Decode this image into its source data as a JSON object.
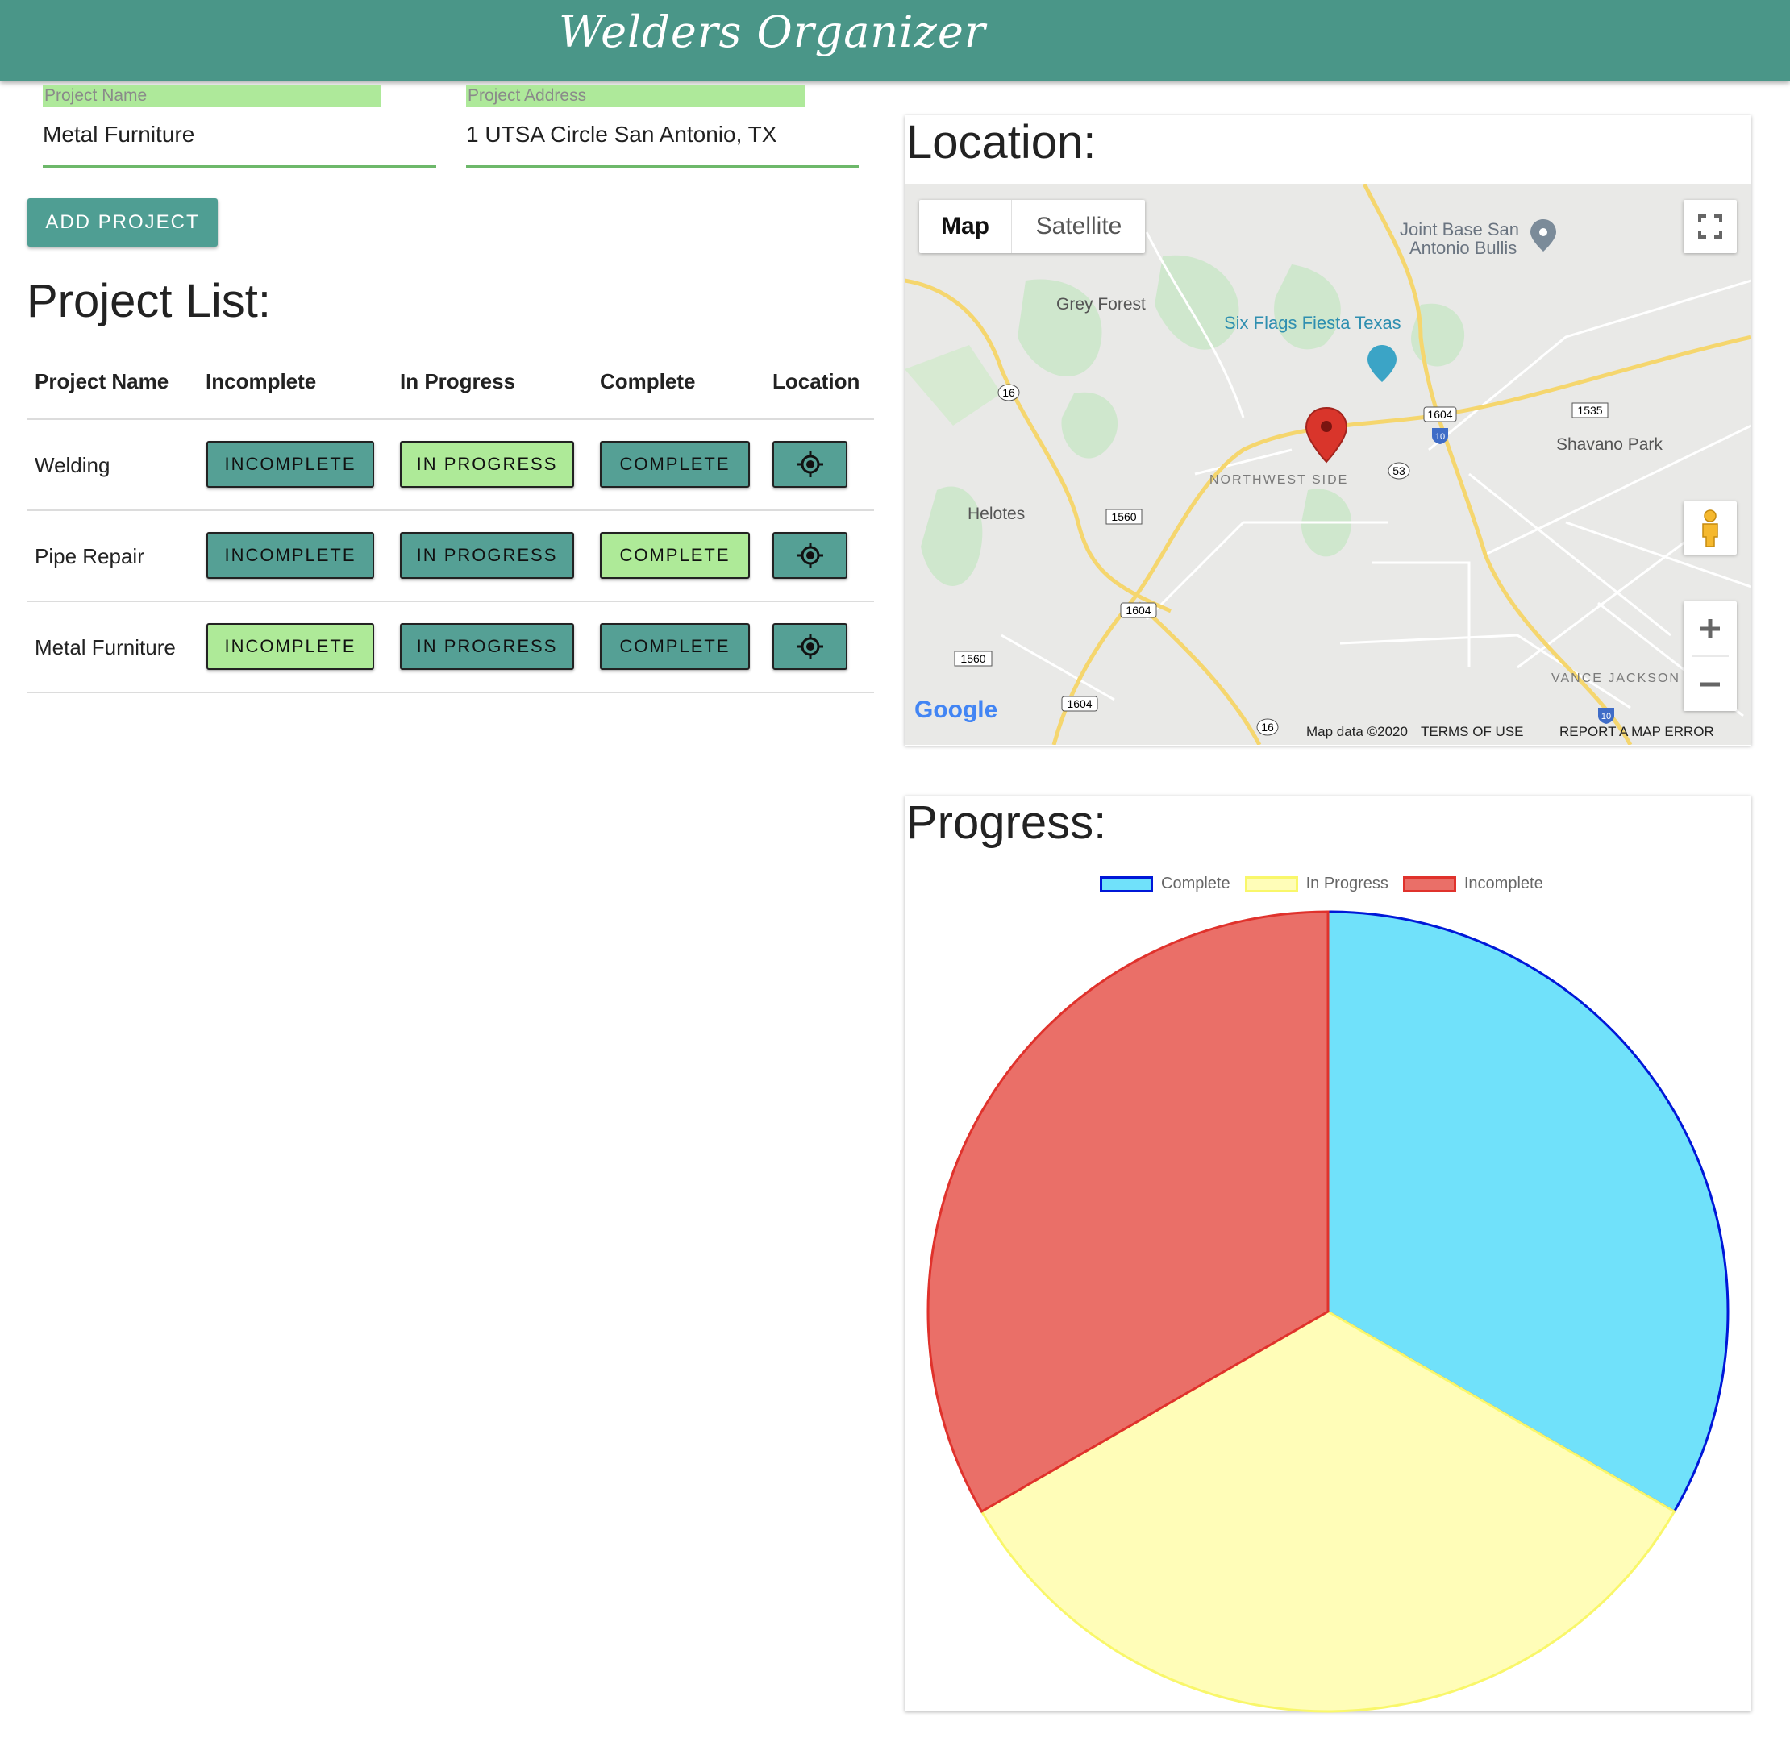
{
  "app": {
    "title": "Welders Organizer"
  },
  "form": {
    "project_name_label": "Project Name",
    "project_name_value": "Metal Furniture",
    "project_address_label": "Project Address",
    "project_address_value": "1 UTSA Circle San Antonio, TX",
    "add_button": "ADD PROJECT"
  },
  "project_list": {
    "title": "Project List:",
    "headers": [
      "Project Name",
      "Incomplete",
      "In Progress",
      "Complete",
      "Location"
    ],
    "button_labels": {
      "incomplete": "INCOMPLETE",
      "in_progress": "IN PROGRESS",
      "complete": "COMPLETE"
    },
    "rows": [
      {
        "name": "Welding",
        "status": "in_progress"
      },
      {
        "name": "Pipe Repair",
        "status": "complete"
      },
      {
        "name": "Metal Furniture",
        "status": "incomplete"
      }
    ]
  },
  "location": {
    "title": "Location:",
    "map_tabs": [
      "Map",
      "Satellite"
    ],
    "active_tab": "Map",
    "places": [
      "Grey Forest",
      "Six Flags Fiesta Texas",
      "Joint Base San",
      "Antonio Bullis",
      "Shavano Park",
      "NORTHWEST SIDE",
      "Helotes",
      "VANCE JACKSON"
    ],
    "road_shields": [
      "16",
      "1604",
      "10",
      "1535",
      "53",
      "1560",
      "1604",
      "1560",
      "1604",
      "16",
      "10"
    ],
    "attribution": "Map data ©2020",
    "terms": "TERMS OF USE",
    "report": "REPORT A MAP ERROR",
    "google": "Google",
    "icons": [
      "fullscreen-icon",
      "pegman-icon",
      "zoom-in-icon",
      "zoom-out-icon",
      "map-marker-icon",
      "amusement-park-icon",
      "place-icon",
      "crosshair-icon"
    ]
  },
  "progress": {
    "title": "Progress:"
  },
  "chart_data": {
    "type": "pie",
    "labels": [
      "Complete",
      "In Progress",
      "Incomplete"
    ],
    "values": [
      1,
      1,
      1
    ],
    "colors": {
      "Complete": "#70e1fa",
      "In Progress": "#fffdb8",
      "Incomplete": "#ea6f68"
    },
    "borders": {
      "Complete": "#0018d8",
      "In Progress": "#f9f76a",
      "Incomplete": "#e0322c"
    },
    "legend_position": "top"
  },
  "colors": {
    "appbar": "#4a9688",
    "teal_button": "#55a095",
    "green_button": "#aeea98",
    "label_bg": "#aee99a"
  }
}
